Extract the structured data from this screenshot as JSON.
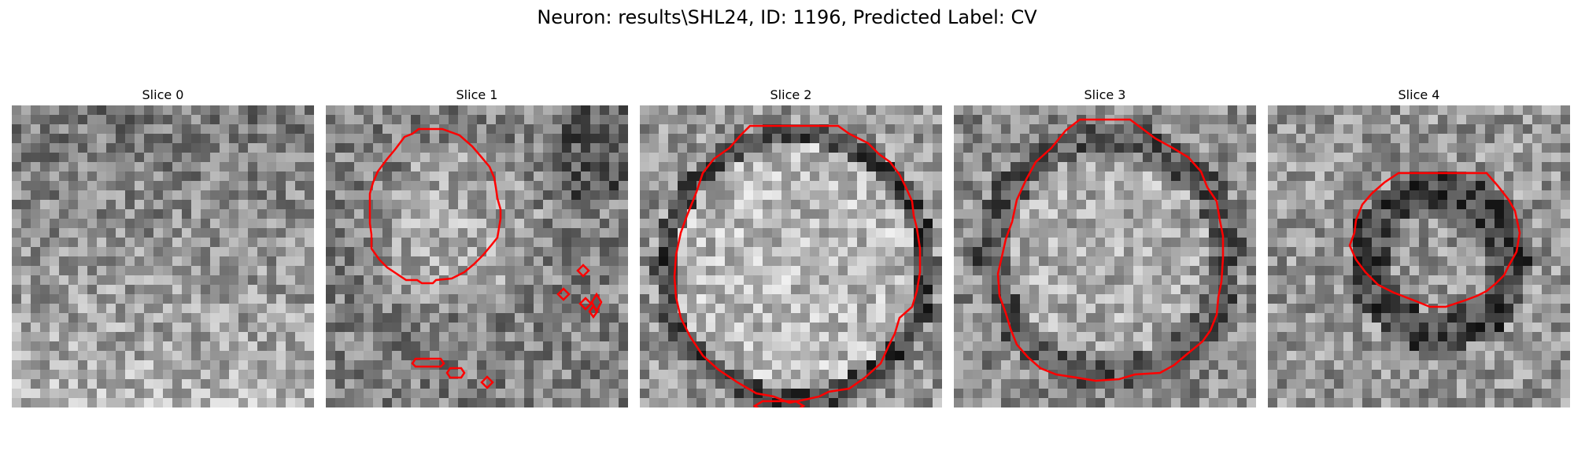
{
  "figure": {
    "suptitle": "Neuron: results\\SHL24, ID: 1196, Predicted Label: CV"
  },
  "panels": [
    {
      "title": "Slice 0",
      "contours": []
    },
    {
      "title": "Slice 1",
      "contours": [
        "M118,30 L148,30 L170,38 L186,52 L198,66 L208,78 L214,92 L216,104 L218,118 L222,132 L222,144 L220,156 L218,168 L210,178 L200,190 L188,202 L176,212 L160,220 L140,222 L136,226 L122,226 L116,222 L102,222 L90,214 L78,206 L68,196 L58,182 L58,164 L56,150 L56,130 L56,112 L60,98 L66,84 L78,68 L88,56 L100,40 L110,36 Z",
        "M114,322 L146,322 L150,328 L146,332 L114,332 L110,328 Z",
        "M158,334 L172,334 L176,340 L172,346 L158,346 L154,340 Z",
        "M205,345 L212,352 L205,359 L198,352 Z",
        "M302,233 L309,240 L302,247 L295,240 Z",
        "M327,203 L334,210 L327,217 L320,210 Z",
        "M330,245 L337,252 L330,259 L323,252 Z",
        "M344,240 L350,250 L344,262 L338,250 Z",
        "M340,255 L345,262 L340,269 L335,262 Z"
      ]
    },
    {
      "title": "Slice 2",
      "contours": [
        "M140,26 L252,26 L266,36 L290,48 L304,62 L318,72 L330,88 L338,104 L346,122 L348,140 L352,156 L356,182 L356,212 L352,236 L346,256 L330,270 L324,290 L316,306 L306,328 L286,346 L266,360 L240,364 L228,370 L210,374 L190,378 L170,370 L148,366 L124,352 L100,336 L80,318 L64,294 L52,270 L46,244 L44,218 L46,190 L52,162 L60,140 L72,110 L80,86 L94,68 L114,54 L128,38 Z",
        "M156,376 L198,376 L208,382 L198,388 L156,388 L146,382 Z"
      ]
    },
    {
      "title": "Slice 3",
      "contours": [
        "M160,18 L224,18 L240,30 L256,42 L278,54 L298,66 L314,84 L322,104 L334,122 L338,146 L342,166 L342,194 L340,224 L336,244 L334,266 L326,286 L316,300 L294,318 L280,330 L262,340 L230,342 L210,348 L180,350 L156,346 L130,342 L110,334 L94,320 L80,304 L72,284 L66,264 L58,242 L56,214 L62,188 L66,170 L74,148 L80,120 L92,94 L104,72 L124,54 L142,32 Z"
      ]
    },
    {
      "title": "Slice 4",
      "contours": [
        "M166,86 L278,86 L292,102 L306,120 L314,134 L320,162 L316,186 L306,204 L300,216 L290,226 L278,236 L266,242 L250,248 L226,256 L206,256 L186,248 L160,238 L140,228 L124,212 L112,196 L104,178 L110,162 L112,146 L120,126 L132,112 L148,98 Z"
      ]
    }
  ]
}
